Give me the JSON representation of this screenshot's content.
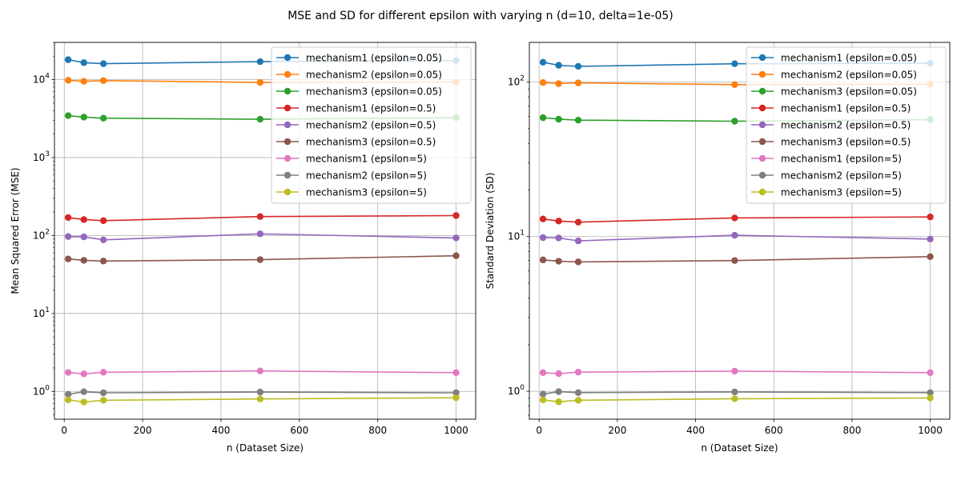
{
  "figure": {
    "suptitle": "MSE and SD for different epsilon with varying n (d=10, delta=1e-05)"
  },
  "chart_data": [
    {
      "type": "line",
      "name": "mse-chart",
      "xlabel": "n (Dataset Size)",
      "ylabel": "Mean Squared Error (MSE)",
      "yscale": "log",
      "xlim": [
        -25,
        1050
      ],
      "ylim": [
        0.44,
        30000
      ],
      "x_ticks": [
        0,
        200,
        400,
        600,
        800,
        1000
      ],
      "y_ticks": [
        1,
        10,
        100,
        1000,
        10000
      ],
      "y_tick_labels": [
        [
          "10",
          "0"
        ],
        [
          "10",
          "1"
        ],
        [
          "10",
          "2"
        ],
        [
          "10",
          "3"
        ],
        [
          "10",
          "4"
        ]
      ],
      "grid": true,
      "legend_position": "top-right",
      "x": [
        10,
        50,
        100,
        500,
        1000
      ],
      "series": [
        {
          "name": "mechanism1 (epsilon=0.05)",
          "color": "#1f77b4",
          "values": [
            18000,
            16500,
            16000,
            17000,
            17500
          ]
        },
        {
          "name": "mechanism2 (epsilon=0.05)",
          "color": "#ff7f0e",
          "values": [
            9800,
            9500,
            9700,
            9200,
            9300
          ]
        },
        {
          "name": "mechanism3 (epsilon=0.05)",
          "color": "#2ca02c",
          "values": [
            3450,
            3300,
            3200,
            3100,
            3250
          ]
        },
        {
          "name": "mechanism1 (epsilon=0.5)",
          "color": "#d62728",
          "values": [
            170,
            160,
            155,
            175,
            180
          ]
        },
        {
          "name": "mechanism2 (epsilon=0.5)",
          "color": "#9467bd",
          "values": [
            97,
            96,
            88,
            105,
            93
          ]
        },
        {
          "name": "mechanism3 (epsilon=0.5)",
          "color": "#8c564b",
          "values": [
            50,
            48,
            47,
            49,
            55
          ]
        },
        {
          "name": "mechanism1 (epsilon=5)",
          "color": "#e377c2",
          "values": [
            1.75,
            1.68,
            1.76,
            1.83,
            1.74
          ]
        },
        {
          "name": "mechanism2 (epsilon=5)",
          "color": "#7f7f7f",
          "values": [
            0.92,
            0.99,
            0.96,
            0.98,
            0.96
          ]
        },
        {
          "name": "mechanism3 (epsilon=5)",
          "color": "#bcbd22",
          "values": [
            0.78,
            0.73,
            0.77,
            0.8,
            0.83
          ]
        }
      ]
    },
    {
      "type": "line",
      "name": "sd-chart",
      "xlabel": "n (Dataset Size)",
      "ylabel": "Standard Deviation (SD)",
      "yscale": "log",
      "xlim": [
        -25,
        1050
      ],
      "ylim": [
        0.66,
        180
      ],
      "x_ticks": [
        0,
        200,
        400,
        600,
        800,
        1000
      ],
      "y_ticks": [
        1,
        10,
        100
      ],
      "y_tick_labels": [
        [
          "10",
          "0"
        ],
        [
          "10",
          "1"
        ],
        [
          "10",
          "2"
        ]
      ],
      "grid": true,
      "legend_position": "top-right",
      "x": [
        10,
        50,
        100,
        500,
        1000
      ],
      "series": [
        {
          "name": "mechanism1 (epsilon=0.05)",
          "color": "#1f77b4",
          "values": [
            134,
            128,
            126,
            131,
            132
          ]
        },
        {
          "name": "mechanism2 (epsilon=0.05)",
          "color": "#ff7f0e",
          "values": [
            99,
            97.5,
            98.5,
            96,
            96.5
          ]
        },
        {
          "name": "mechanism3 (epsilon=0.05)",
          "color": "#2ca02c",
          "values": [
            58.7,
            57.4,
            56.6,
            55.7,
            57
          ]
        },
        {
          "name": "mechanism1 (epsilon=0.5)",
          "color": "#d62728",
          "values": [
            13,
            12.6,
            12.4,
            13.2,
            13.4
          ]
        },
        {
          "name": "mechanism2 (epsilon=0.5)",
          "color": "#9467bd",
          "values": [
            9.85,
            9.8,
            9.38,
            10.2,
            9.64
          ]
        },
        {
          "name": "mechanism3 (epsilon=0.5)",
          "color": "#8c564b",
          "values": [
            7.07,
            6.93,
            6.86,
            7.0,
            7.42
          ]
        },
        {
          "name": "mechanism1 (epsilon=5)",
          "color": "#e377c2",
          "values": [
            1.32,
            1.3,
            1.33,
            1.35,
            1.32
          ]
        },
        {
          "name": "mechanism2 (epsilon=5)",
          "color": "#7f7f7f",
          "values": [
            0.96,
            0.995,
            0.98,
            0.99,
            0.98
          ]
        },
        {
          "name": "mechanism3 (epsilon=5)",
          "color": "#bcbd22",
          "values": [
            0.88,
            0.855,
            0.875,
            0.895,
            0.905
          ]
        }
      ]
    }
  ]
}
